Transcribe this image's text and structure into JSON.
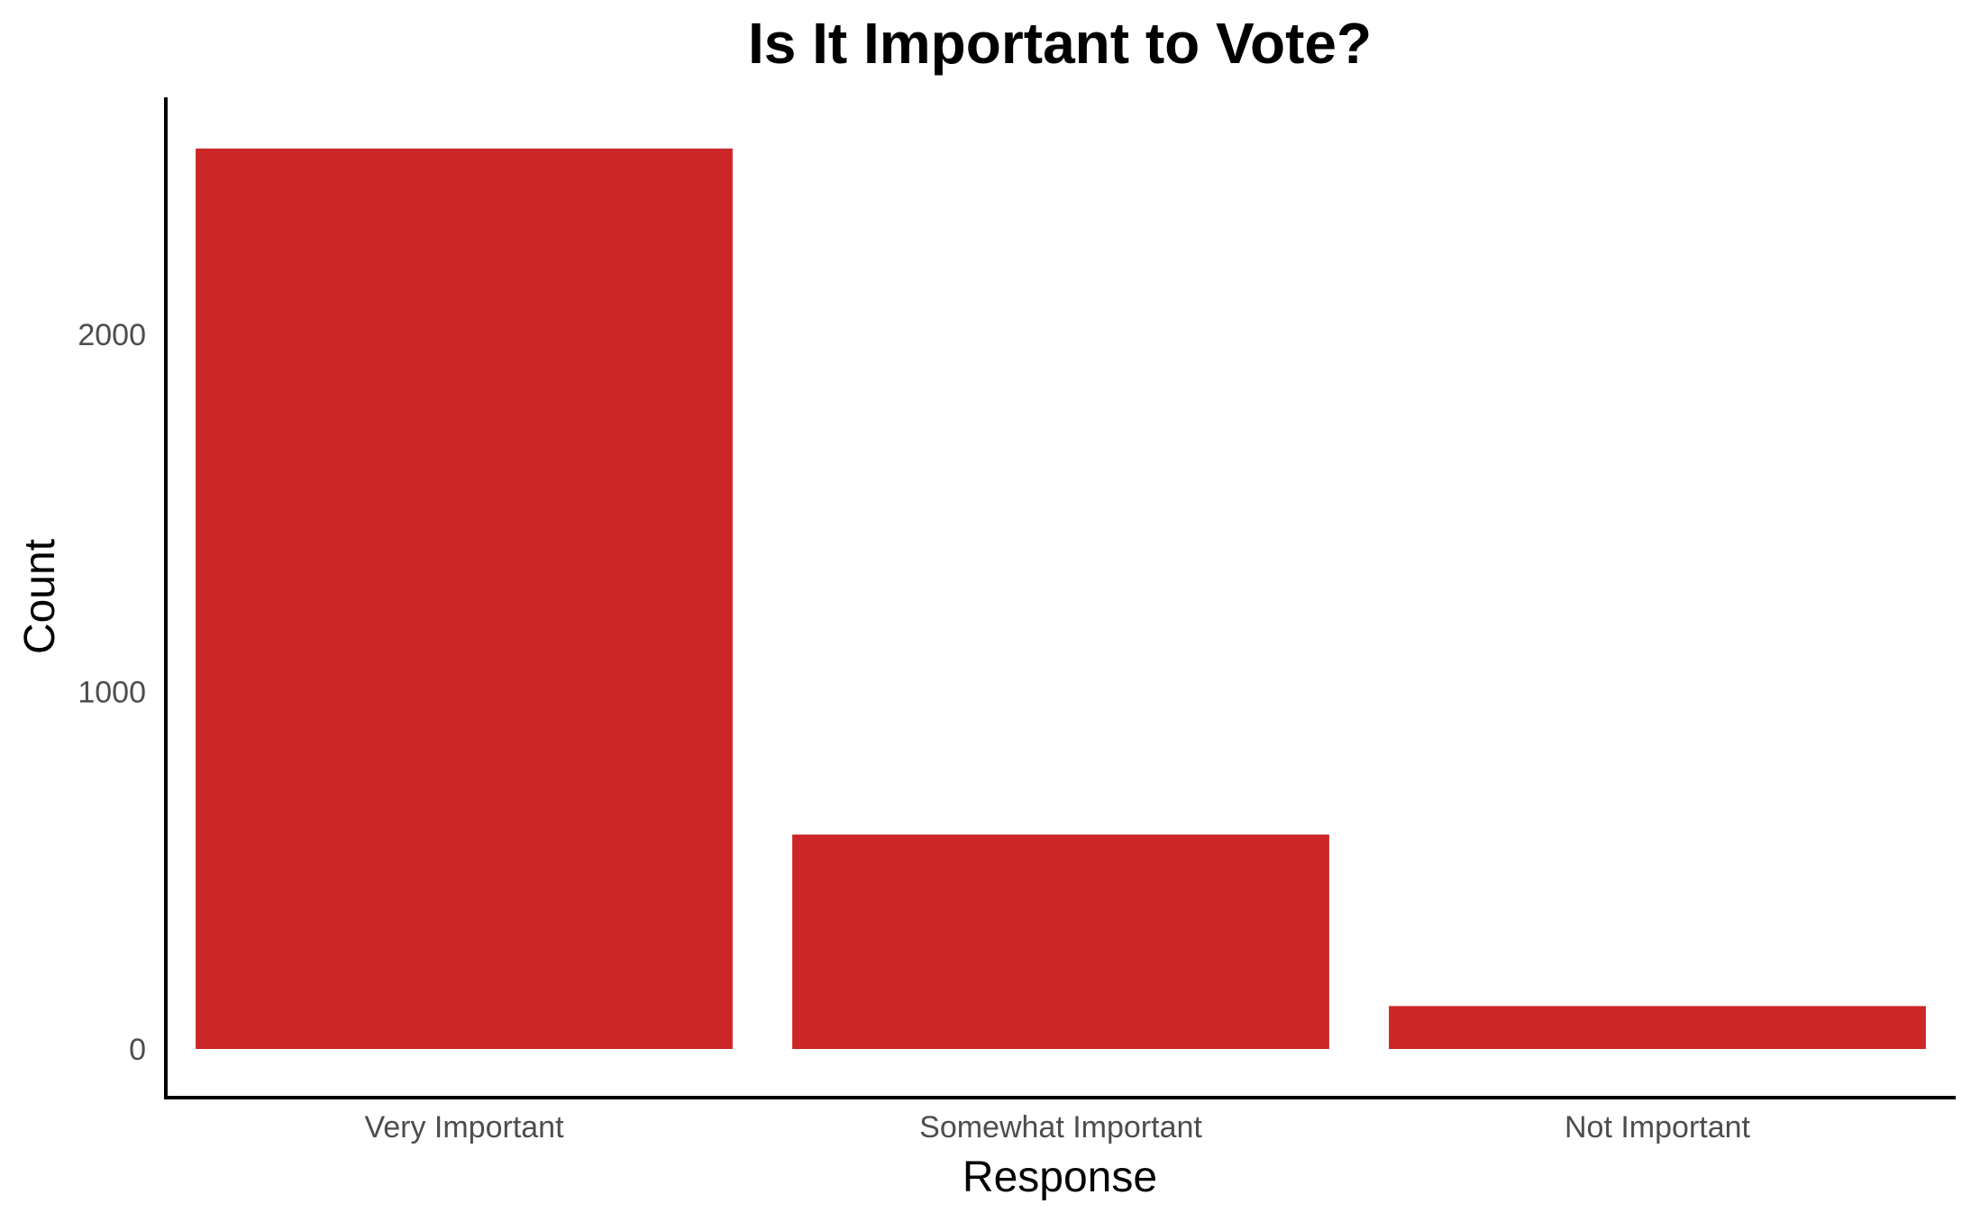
{
  "chart_data": {
    "type": "bar",
    "title": "Is It Important to Vote?",
    "xlabel": "Response",
    "ylabel": "Count",
    "categories": [
      "Very Important",
      "Somewhat Important",
      "Not Important"
    ],
    "values": [
      2520,
      600,
      120
    ],
    "ylim": [
      0,
      2650
    ],
    "yticks": [
      0,
      1000,
      2000
    ],
    "ytick_labels": [
      "0",
      "1000",
      "2000"
    ],
    "grid": false,
    "legend": "none",
    "bar_color": "#cc2626"
  }
}
